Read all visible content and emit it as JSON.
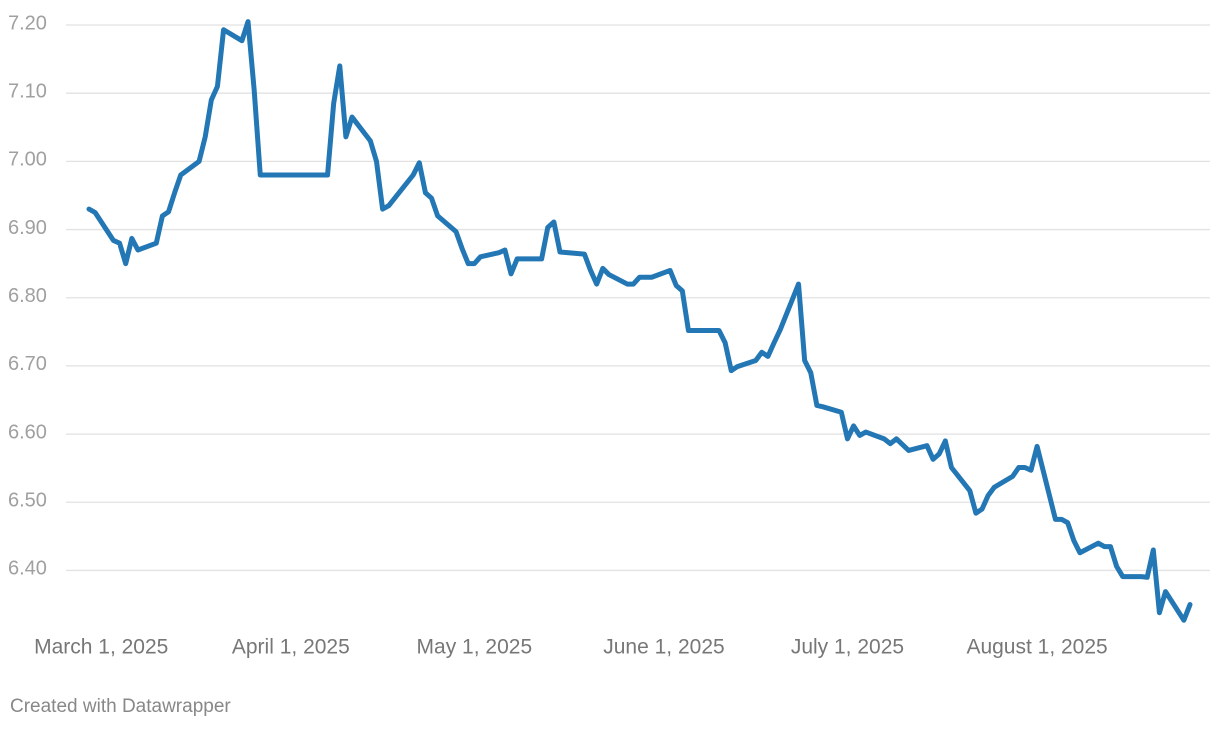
{
  "chart_data": {
    "type": "line",
    "credit": "Created with Datawrapper",
    "x": [
      "2025-02-27",
      "2025-02-28",
      "2025-03-03",
      "2025-03-04",
      "2025-03-05",
      "2025-03-06",
      "2025-03-07",
      "2025-03-10",
      "2025-03-11",
      "2025-03-12",
      "2025-03-13",
      "2025-03-14",
      "2025-03-17",
      "2025-03-18",
      "2025-03-19",
      "2025-03-20",
      "2025-03-21",
      "2025-03-24",
      "2025-03-25",
      "2025-03-26",
      "2025-03-27",
      "2025-03-28",
      "2025-03-31",
      "2025-04-01",
      "2025-04-02",
      "2025-04-03",
      "2025-04-04",
      "2025-04-07",
      "2025-04-08",
      "2025-04-09",
      "2025-04-10",
      "2025-04-11",
      "2025-04-14",
      "2025-04-15",
      "2025-04-16",
      "2025-04-17",
      "2025-04-21",
      "2025-04-22",
      "2025-04-23",
      "2025-04-24",
      "2025-04-25",
      "2025-04-28",
      "2025-04-29",
      "2025-04-30",
      "2025-05-01",
      "2025-05-02",
      "2025-05-05",
      "2025-05-06",
      "2025-05-07",
      "2025-05-08",
      "2025-05-09",
      "2025-05-12",
      "2025-05-13",
      "2025-05-14",
      "2025-05-15",
      "2025-05-19",
      "2025-05-20",
      "2025-05-21",
      "2025-05-22",
      "2025-05-23",
      "2025-05-26",
      "2025-05-27",
      "2025-05-28",
      "2025-05-30",
      "2025-06-02",
      "2025-06-03",
      "2025-06-04",
      "2025-06-05",
      "2025-06-09",
      "2025-06-10",
      "2025-06-11",
      "2025-06-12",
      "2025-06-13",
      "2025-06-16",
      "2025-06-17",
      "2025-06-18",
      "2025-06-19",
      "2025-06-20",
      "2025-06-23",
      "2025-06-24",
      "2025-06-25",
      "2025-06-26",
      "2025-06-27",
      "2025-06-30",
      "2025-07-01",
      "2025-07-02",
      "2025-07-03",
      "2025-07-04",
      "2025-07-07",
      "2025-07-08",
      "2025-07-09",
      "2025-07-11",
      "2025-07-14",
      "2025-07-15",
      "2025-07-16",
      "2025-07-17",
      "2025-07-18",
      "2025-07-21",
      "2025-07-22",
      "2025-07-23",
      "2025-07-24",
      "2025-07-25",
      "2025-07-28",
      "2025-07-29",
      "2025-07-30",
      "2025-07-31",
      "2025-08-01",
      "2025-08-04",
      "2025-08-05",
      "2025-08-06",
      "2025-08-07",
      "2025-08-08",
      "2025-08-11",
      "2025-08-12",
      "2025-08-13",
      "2025-08-14",
      "2025-08-15",
      "2025-08-18",
      "2025-08-19",
      "2025-08-20",
      "2025-08-21",
      "2025-08-22",
      "2025-08-25",
      "2025-08-26"
    ],
    "series": [
      {
        "color": "#2377b4",
        "values": [
          6.93,
          6.925,
          6.884,
          6.88,
          6.85,
          6.887,
          6.87,
          6.88,
          6.92,
          6.926,
          6.954,
          6.98,
          7.0,
          7.036,
          7.09,
          7.11,
          7.193,
          7.177,
          7.205,
          7.105,
          6.98,
          6.98,
          6.98,
          6.98,
          6.98,
          6.98,
          6.98,
          6.98,
          7.085,
          7.14,
          7.036,
          7.065,
          7.03,
          7.0,
          6.93,
          6.935,
          6.98,
          6.998,
          6.954,
          6.946,
          6.92,
          6.897,
          6.872,
          6.85,
          6.85,
          6.86,
          6.866,
          6.87,
          6.835,
          6.857,
          6.857,
          6.857,
          6.903,
          6.911,
          6.867,
          6.864,
          6.84,
          6.82,
          6.843,
          6.834,
          6.82,
          6.82,
          6.83,
          6.83,
          6.84,
          6.818,
          6.81,
          6.752,
          6.752,
          6.752,
          6.734,
          6.693,
          6.699,
          6.708,
          6.72,
          6.714,
          6.734,
          6.753,
          6.82,
          6.708,
          6.69,
          6.642,
          6.64,
          6.632,
          6.593,
          6.612,
          6.598,
          6.603,
          6.593,
          6.586,
          6.593,
          6.576,
          6.583,
          6.563,
          6.571,
          6.59,
          6.551,
          6.517,
          6.484,
          6.49,
          6.51,
          6.522,
          6.538,
          6.551,
          6.551,
          6.547,
          6.582,
          6.475,
          6.475,
          6.47,
          6.444,
          6.426,
          6.44,
          6.435,
          6.435,
          6.406,
          6.391,
          6.391,
          6.39,
          6.43,
          6.338,
          6.369,
          6.327,
          6.35
        ]
      }
    ],
    "xlim": [
      "2025-02-27",
      "2025-08-26"
    ],
    "xticks": [
      {
        "value": "2025-03-01",
        "label": "March 1, 2025"
      },
      {
        "value": "2025-04-01",
        "label": "April 1, 2025"
      },
      {
        "value": "2025-05-01",
        "label": "May 1, 2025"
      },
      {
        "value": "2025-06-01",
        "label": "June 1, 2025"
      },
      {
        "value": "2025-07-01",
        "label": "July 1, 2025"
      },
      {
        "value": "2025-08-01",
        "label": "August 1, 2025"
      }
    ],
    "ylim": [
      6.32,
      7.2
    ],
    "yticks": [
      {
        "value": 6.4,
        "label": "6.40"
      },
      {
        "value": 6.5,
        "label": "6.50"
      },
      {
        "value": 6.6,
        "label": "6.60"
      },
      {
        "value": 6.7,
        "label": "6.70"
      },
      {
        "value": 6.8,
        "label": "6.80"
      },
      {
        "value": 6.9,
        "label": "6.90"
      },
      {
        "value": 7.0,
        "label": "7.00"
      },
      {
        "value": 7.1,
        "label": "7.10"
      },
      {
        "value": 7.2,
        "label": "7.20"
      }
    ],
    "grid": true
  }
}
